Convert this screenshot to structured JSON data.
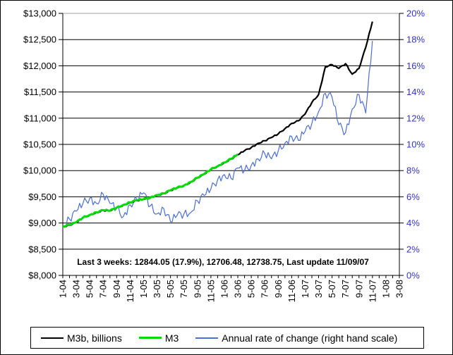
{
  "window": {
    "background": "#ffffff",
    "border_color": "#000000"
  },
  "chart_data": {
    "type": "line",
    "title": "",
    "legend_position": "bottom",
    "grid": "horizontal-on",
    "plot_border_top_color": "#a0a0a0",
    "x_axis": {
      "tick_labels": [
        "1-04",
        "3-04",
        "5-04",
        "7-04",
        "9-04",
        "11-04",
        "1-05",
        "3-05",
        "5-05",
        "7-05",
        "9-05",
        "11-05",
        "1-06",
        "3-06",
        "5-06",
        "7-06",
        "9-06",
        "11-06",
        "1-07",
        "3-07",
        "5-07",
        "7-07",
        "9-07",
        "11-07",
        "1-08",
        "3-08"
      ],
      "months_span": 50,
      "label_rotation_deg": 90
    },
    "left_axis": {
      "labels": [
        "$13,000",
        "$12,500",
        "$12,000",
        "$11,500",
        "$11,000",
        "$10,500",
        "$10,000",
        "$9,500",
        "$9,000",
        "$8,500",
        "$8,000"
      ],
      "min": 8000,
      "max": 13000,
      "step": 500,
      "color": "#000000"
    },
    "right_axis": {
      "labels": [
        "20%",
        "18%",
        "16%",
        "14%",
        "12%",
        "10%",
        "8%",
        "6%",
        "4%",
        "2%",
        "0%"
      ],
      "min": 0,
      "max": 20,
      "step": 2,
      "color": "#3333cc"
    },
    "series": [
      {
        "name": "M3b, billions",
        "axis": "left",
        "color": "#000000",
        "stroke_width": 2.2,
        "start_month_label": "1-04",
        "monthly_values": [
          8930,
          8960,
          9010,
          9100,
          9150,
          9200,
          9240,
          9230,
          9290,
          9340,
          9390,
          9430,
          9450,
          9480,
          9530,
          9560,
          9620,
          9670,
          9710,
          9780,
          9860,
          9930,
          10020,
          10080,
          10150,
          10220,
          10300,
          10380,
          10440,
          10520,
          10570,
          10630,
          10700,
          10800,
          10900,
          10950,
          11080,
          11300,
          11450,
          11980,
          12020,
          11950,
          12040,
          11840,
          11950,
          12350,
          12844
        ]
      },
      {
        "name": "M3",
        "axis": "left",
        "color": "#00dd00",
        "stroke_width": 3,
        "start_month_label": "1-04",
        "monthly_values": [
          8935,
          8965,
          9015,
          9105,
          9155,
          9205,
          9245,
          9235,
          9295,
          9345,
          9395,
          9435,
          9455,
          9485,
          9535,
          9565,
          9625,
          9675,
          9715,
          9785,
          9865,
          9935,
          10025,
          10085,
          10155,
          10225,
          10310
        ]
      },
      {
        "name": "Annual rate of change (right hand scale)",
        "axis": "right",
        "color": "#4a6edc",
        "stroke_width": 1.2,
        "start_month_label": "1-04",
        "monthly_values": [
          3.8,
          4.3,
          4.9,
          5.5,
          5.9,
          5.5,
          6.2,
          5.5,
          5.1,
          4.5,
          5.4,
          5.8,
          6.3,
          5.3,
          4.7,
          5.1,
          4.1,
          4.6,
          4.7,
          4.8,
          5.7,
          6.1,
          6.6,
          7.3,
          7.7,
          7.4,
          8.2,
          8.0,
          8.4,
          8.9,
          9.3,
          8.9,
          9.5,
          10.1,
          10.6,
          10.3,
          11.0,
          11.6,
          12.5,
          13.9,
          13.6,
          11.5,
          10.9,
          12.7,
          13.8,
          12.4,
          17.9
        ]
      }
    ],
    "annotation": "Last 3 weeks: 12844.05 (17.9%), 12706.48, 12738.75, Last update 11/09/07",
    "last_values": {
      "latest": 12844.05,
      "latest_rate_pct": 17.9,
      "prior_weeks": [
        12706.48,
        12738.75
      ],
      "last_update": "11/09/07"
    }
  }
}
